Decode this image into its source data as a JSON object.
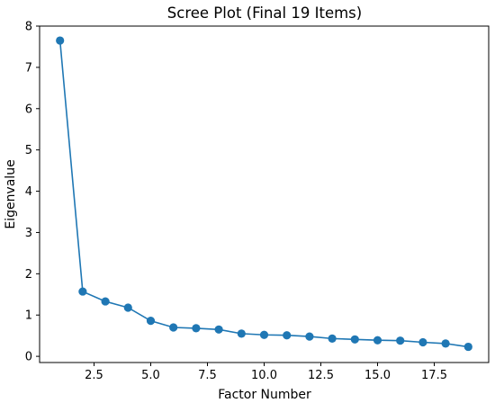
{
  "chart_data": {
    "type": "line",
    "title": "Scree Plot (Final 19 Items)",
    "xlabel": "Factor Number",
    "ylabel": "Eigenvalue",
    "xlim": [
      0.1,
      19.9
    ],
    "ylim": [
      -0.15,
      8.0
    ],
    "x_ticks": [
      2.5,
      5.0,
      7.5,
      10.0,
      12.5,
      15.0,
      17.5
    ],
    "x_tick_labels": [
      "2.5",
      "5.0",
      "7.5",
      "10.0",
      "12.5",
      "15.0",
      "17.5"
    ],
    "y_ticks": [
      0,
      1,
      2,
      3,
      4,
      5,
      6,
      7,
      8
    ],
    "y_tick_labels": [
      "0",
      "1",
      "2",
      "3",
      "4",
      "5",
      "6",
      "7",
      "8"
    ],
    "grid": false,
    "series": [
      {
        "color": "#1f77b4",
        "marker": "circle",
        "x": [
          1,
          2,
          3,
          4,
          5,
          6,
          7,
          8,
          9,
          10,
          11,
          12,
          13,
          14,
          15,
          16,
          17,
          18,
          19
        ],
        "values": [
          7.65,
          1.57,
          1.33,
          1.18,
          0.86,
          0.7,
          0.68,
          0.65,
          0.55,
          0.52,
          0.51,
          0.48,
          0.43,
          0.41,
          0.39,
          0.38,
          0.34,
          0.31,
          0.23
        ]
      }
    ]
  }
}
